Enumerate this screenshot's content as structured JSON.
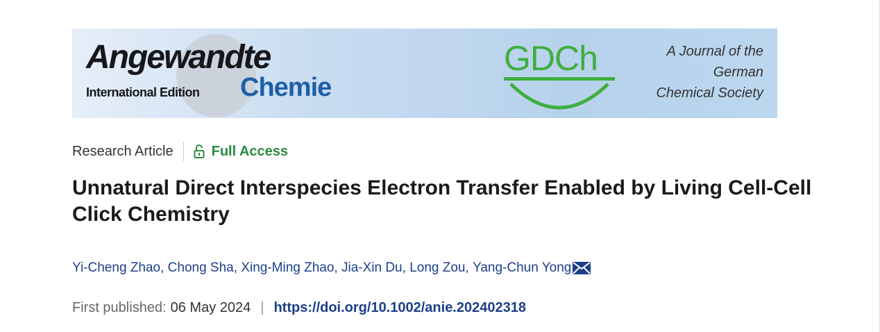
{
  "banner": {
    "journal_logo": "Angewandte Chemie International Edition",
    "logo_main": "Angewandte",
    "logo_edition": "International Edition",
    "logo_chemie": "Chemie",
    "society_logo": "GDCh",
    "society_tagline": [
      "A Journal of the",
      "German",
      "Chemical Society"
    ]
  },
  "article": {
    "type": "Research Article",
    "access": "Full Access",
    "access_icon": "unlock-icon",
    "title": "Unnatural Direct Interspecies Electron Transfer Enabled by Living Cell-Cell Click Chemistry",
    "authors": [
      "Yi-Cheng Zhao",
      "Chong Sha",
      "Xing-Ming Zhao",
      "Jia-Xin Du",
      "Long Zou",
      "Yang-Chun Yong"
    ],
    "author_separator": ", ",
    "corresponding_icon": "envelope-icon",
    "published_label": "First published:",
    "published_date": "06 May 2024",
    "divider": "|",
    "doi": "https://doi.org/10.1002/anie.202402318"
  },
  "colors": {
    "access": "#2b8a3e",
    "link": "#1c3f8a",
    "gdch": "#3fae3f",
    "chemie": "#1f5fa8"
  }
}
